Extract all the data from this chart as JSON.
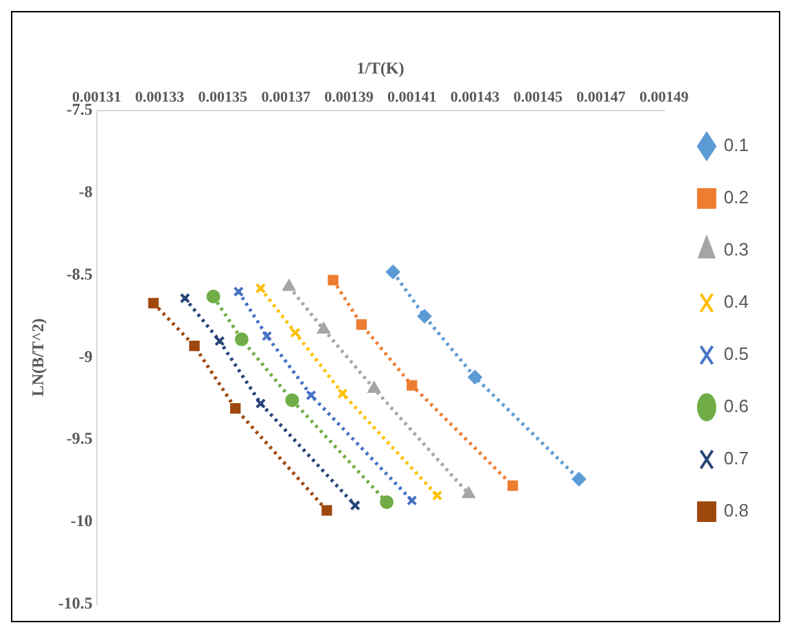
{
  "chart_data": {
    "type": "line",
    "xlabel": "1/T(K)",
    "ylabel": "LN(B/T^2)",
    "xlim": [
      0.00131,
      0.00149
    ],
    "xticks": [
      0.00131,
      0.00133,
      0.00135,
      0.00137,
      0.00139,
      0.00141,
      0.00143,
      0.00145,
      0.00147,
      0.00149
    ],
    "ylim": [
      -10.5,
      -7.5
    ],
    "yticks": [
      -7.5,
      -8,
      -8.5,
      -9,
      -9.5,
      -10,
      -10.5
    ],
    "grid": false,
    "legend": "right",
    "line_style": "dotted",
    "series": [
      {
        "name": "0.1",
        "color": "#5b9bd5",
        "marker": "diamond",
        "x": [
          0.001404,
          0.001414,
          0.00143,
          0.001463
        ],
        "values": [
          -8.48,
          -8.75,
          -9.12,
          -9.74
        ]
      },
      {
        "name": "0.2",
        "color": "#ed7d31",
        "marker": "square",
        "x": [
          0.001385,
          0.001394,
          0.00141,
          0.001442
        ],
        "values": [
          -8.53,
          -8.8,
          -9.17,
          -9.78
        ]
      },
      {
        "name": "0.3",
        "color": "#a5a5a5",
        "marker": "triangle",
        "x": [
          0.001371,
          0.001382,
          0.001398,
          0.001428
        ],
        "values": [
          -8.57,
          -8.83,
          -9.19,
          -9.83
        ]
      },
      {
        "name": "0.4",
        "color": "#ffc000",
        "marker": "cross",
        "x": [
          0.001362,
          0.001373,
          0.001388,
          0.001418
        ],
        "values": [
          -8.58,
          -8.85,
          -9.22,
          -9.84
        ]
      },
      {
        "name": "0.5",
        "color": "#4472c4",
        "marker": "cross",
        "x": [
          0.001355,
          0.001364,
          0.001378,
          0.00141
        ],
        "values": [
          -8.6,
          -8.87,
          -9.23,
          -9.87
        ]
      },
      {
        "name": "0.6",
        "color": "#70ad47",
        "marker": "circle",
        "x": [
          0.001347,
          0.001356,
          0.001372,
          0.001402
        ],
        "values": [
          -8.63,
          -8.89,
          -9.26,
          -9.88
        ]
      },
      {
        "name": "0.7",
        "color": "#264478",
        "marker": "cross",
        "x": [
          0.001338,
          0.001349,
          0.001362,
          0.001392
        ],
        "values": [
          -8.64,
          -8.9,
          -9.28,
          -9.9
        ]
      },
      {
        "name": "0.8",
        "color": "#9e480e",
        "marker": "square",
        "x": [
          0.001328,
          0.001341,
          0.001354,
          0.001383
        ],
        "values": [
          -8.67,
          -8.93,
          -9.31,
          -9.93
        ]
      }
    ]
  }
}
